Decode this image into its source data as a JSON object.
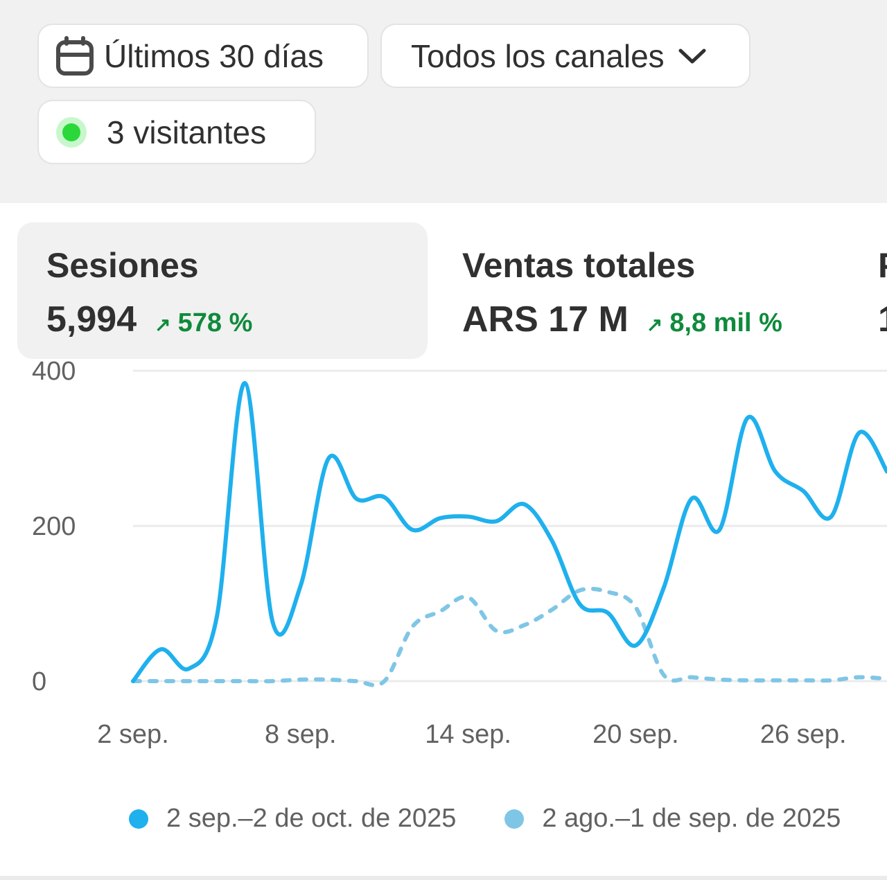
{
  "filters": {
    "date_range": {
      "label": "Últimos 30 días",
      "icon": "calendar-icon"
    },
    "channels": {
      "label": "Todos los canales",
      "icon": "chevron-down-icon"
    },
    "live_visitors": {
      "label": "3 visitantes",
      "status_color": "#2ad83a"
    }
  },
  "metrics": [
    {
      "title": "Sesiones",
      "value": "5,994",
      "delta": "578 %",
      "trend": "up",
      "selected": true
    },
    {
      "title": "Ventas totales",
      "value": "ARS 17 M",
      "delta": "8,8 mil %",
      "trend": "up",
      "selected": false
    },
    {
      "title": "P",
      "value": "1",
      "selected": false
    }
  ],
  "colors": {
    "current": "#1fb0ee",
    "previous": "#7fc6e6",
    "delta_positive": "#0f8a3c"
  },
  "chart_data": {
    "type": "line",
    "x_tick_labels": [
      "2 sep.",
      "8 sep.",
      "14 sep.",
      "20 sep.",
      "26 sep."
    ],
    "y_tick_labels": [
      "0",
      "200",
      "400"
    ],
    "ylim": [
      0,
      400
    ],
    "grid": true,
    "legend_position": "bottom",
    "x": [
      "2 sep.",
      "3 sep.",
      "4 sep.",
      "5 sep.",
      "6 sep.",
      "7 sep.",
      "8 sep.",
      "9 sep.",
      "10 sep.",
      "11 sep.",
      "12 sep.",
      "13 sep.",
      "14 sep.",
      "15 sep.",
      "16 sep.",
      "17 sep.",
      "18 sep.",
      "19 sep.",
      "20 sep.",
      "21 sep.",
      "22 sep.",
      "23 sep.",
      "24 sep.",
      "25 sep.",
      "26 sep.",
      "27 sep.",
      "28 sep.",
      "29 sep."
    ],
    "series": [
      {
        "name": "2 sep.–2 de oct. de 2025",
        "style": "solid",
        "values": [
          0,
          41,
          16,
          83,
          384,
          76,
          123,
          287,
          235,
          237,
          195,
          210,
          212,
          206,
          228,
          181,
          99,
          88,
          46,
          120,
          235,
          195,
          339,
          270,
          245,
          212,
          320,
          270
        ]
      },
      {
        "name": "2 ago.–1 de sep. de 2025",
        "style": "dashed",
        "values": [
          0,
          0,
          0,
          0,
          0,
          0,
          2,
          2,
          0,
          0,
          70,
          90,
          108,
          65,
          72,
          92,
          117,
          115,
          95,
          8,
          5,
          2,
          1,
          1,
          1,
          1,
          5,
          3
        ]
      }
    ]
  }
}
